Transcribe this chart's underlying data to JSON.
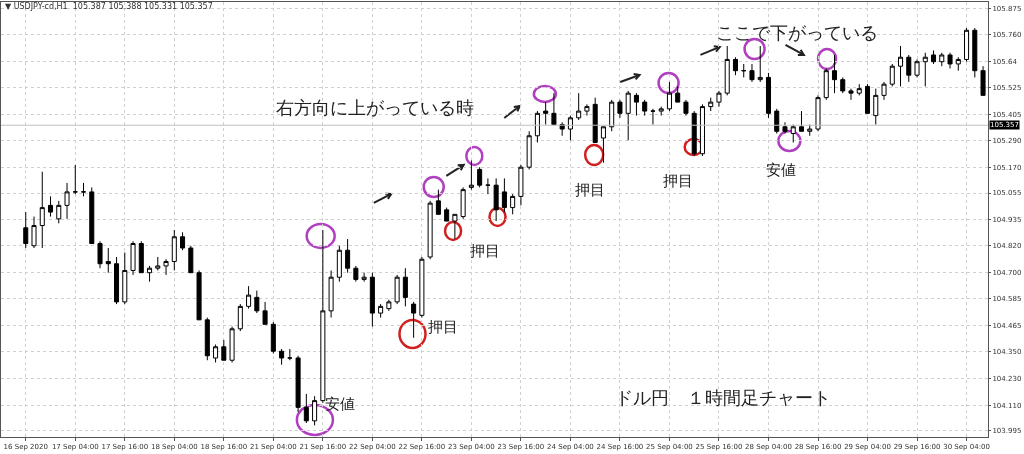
{
  "chart_data": {
    "type": "candlestick",
    "title": "▼ USDJPY-cd,H1  105.387 105.388 105.331 105.357",
    "color": "#000000",
    "annotations": [
      "右方向に上がっている時",
      "ここで下がっている",
      "ドル円　１時間足チャート",
      "安値",
      "押目",
      "押目",
      "押目",
      "押目",
      "安値"
    ],
    "categories": [
      "16 Sep 2020",
      null,
      null,
      null,
      null,
      null,
      "17 Sep 04:00",
      null,
      null,
      null,
      null,
      null,
      "17 Sep 16:00",
      null,
      null,
      null,
      null,
      null,
      "18 Sep 04:00",
      null,
      null,
      null,
      null,
      null,
      "18 Sep 16:00",
      null,
      null,
      null,
      null,
      null,
      "21 Sep 04:00",
      null,
      null,
      null,
      null,
      null,
      "21 Sep 16:00",
      null,
      null,
      null,
      null,
      null,
      "22 Sep 04:00",
      null,
      null,
      null,
      null,
      null,
      "22 Sep 16:00",
      null,
      null,
      null,
      null,
      null,
      "23 Sep 04:00",
      null,
      null,
      null,
      null,
      null,
      "23 Sep 16:00",
      null,
      null,
      null,
      null,
      null,
      "24 Sep 04:00",
      null,
      null,
      null,
      null,
      null,
      "24 Sep 16:00",
      null,
      null,
      null,
      null,
      null,
      "25 Sep 04:00",
      null,
      null,
      null,
      null,
      null,
      "25 Sep 16:00",
      null,
      null,
      null,
      null,
      null,
      "28 Sep 04:00",
      null,
      null,
      null,
      null,
      null,
      "28 Sep 16:00",
      null,
      null,
      null,
      null,
      null,
      "29 Sep 04:00",
      null,
      null,
      null,
      null,
      null,
      "29 Sep 16:00",
      null,
      null,
      null,
      null,
      null,
      "30 Sep 04:00",
      null,
      null
    ],
    "ohlc": [
      [
        104.9,
        104.97,
        104.81,
        104.83
      ],
      [
        104.82,
        104.95,
        104.81,
        104.91
      ],
      [
        104.91,
        105.15,
        104.81,
        104.99
      ],
      [
        105.0,
        105.04,
        104.95,
        104.97
      ],
      [
        104.94,
        105.02,
        104.92,
        105.0
      ],
      [
        105.0,
        105.1,
        104.94,
        105.06
      ],
      [
        105.06,
        105.18,
        105.05,
        105.06
      ],
      [
        105.06,
        105.1,
        105.04,
        105.06
      ],
      [
        105.06,
        105.08,
        104.83,
        104.83
      ],
      [
        104.83,
        104.84,
        104.72,
        104.74
      ],
      [
        104.75,
        104.81,
        104.7,
        104.74
      ],
      [
        104.74,
        104.77,
        104.56,
        104.57
      ],
      [
        104.57,
        104.79,
        104.56,
        104.71
      ],
      [
        104.71,
        104.84,
        104.69,
        104.83
      ],
      [
        104.83,
        104.84,
        104.7,
        104.7
      ],
      [
        104.7,
        104.73,
        104.66,
        104.72
      ],
      [
        104.72,
        104.77,
        104.71,
        104.73
      ],
      [
        104.73,
        104.76,
        104.69,
        104.75
      ],
      [
        104.75,
        104.89,
        104.71,
        104.86
      ],
      [
        104.86,
        104.88,
        104.8,
        104.81
      ],
      [
        104.81,
        104.82,
        104.7,
        104.7
      ],
      [
        104.7,
        104.71,
        104.49,
        104.49
      ],
      [
        104.49,
        104.5,
        104.31,
        104.33
      ],
      [
        104.32,
        104.38,
        104.3,
        104.37
      ],
      [
        104.37,
        104.4,
        104.31,
        104.31
      ],
      [
        104.31,
        104.46,
        104.3,
        104.45
      ],
      [
        104.45,
        104.56,
        104.44,
        104.55
      ],
      [
        104.55,
        104.64,
        104.54,
        104.6
      ],
      [
        104.59,
        104.62,
        104.52,
        104.53
      ],
      [
        104.53,
        104.57,
        104.47,
        104.47
      ],
      [
        104.47,
        104.48,
        104.34,
        104.35
      ],
      [
        104.35,
        104.36,
        104.29,
        104.32
      ],
      [
        104.32,
        104.36,
        104.31,
        104.32
      ],
      [
        104.32,
        104.33,
        104.08,
        104.1
      ],
      [
        104.1,
        104.16,
        104.03,
        104.04
      ],
      [
        104.04,
        104.15,
        104.02,
        104.13
      ],
      [
        104.13,
        104.89,
        104.12,
        104.53
      ],
      [
        104.53,
        104.71,
        104.5,
        104.68
      ],
      [
        104.68,
        104.82,
        104.66,
        104.8
      ],
      [
        104.8,
        104.85,
        104.7,
        104.72
      ],
      [
        104.72,
        104.73,
        104.66,
        104.67
      ],
      [
        104.67,
        104.7,
        104.66,
        104.68
      ],
      [
        104.68,
        104.7,
        104.46,
        104.52
      ],
      [
        104.52,
        104.56,
        104.5,
        104.55
      ],
      [
        104.54,
        104.58,
        104.53,
        104.57
      ],
      [
        104.57,
        104.69,
        104.56,
        104.68
      ],
      [
        104.68,
        104.72,
        104.55,
        104.59
      ],
      [
        104.56,
        104.57,
        104.41,
        104.52
      ],
      [
        104.51,
        104.77,
        104.5,
        104.76
      ],
      [
        104.77,
        105.02,
        104.76,
        105.01
      ],
      [
        105.02,
        105.07,
        104.96,
        104.96
      ],
      [
        104.98,
        104.99,
        104.93,
        104.93
      ],
      [
        104.93,
        104.96,
        104.85,
        104.96
      ],
      [
        104.95,
        105.08,
        104.94,
        105.07
      ],
      [
        105.08,
        105.2,
        105.07,
        105.09
      ],
      [
        105.16,
        105.17,
        105.08,
        105.09
      ],
      [
        105.09,
        105.12,
        105.05,
        105.09
      ],
      [
        105.09,
        105.12,
        104.93,
        104.98
      ],
      [
        105.06,
        105.12,
        104.97,
        104.99
      ],
      [
        104.99,
        105.05,
        104.96,
        105.04
      ],
      [
        105.04,
        105.18,
        105.0,
        105.17
      ],
      [
        105.17,
        105.33,
        105.16,
        105.31
      ],
      [
        105.31,
        105.42,
        105.28,
        105.41
      ],
      [
        105.42,
        105.46,
        105.36,
        105.41
      ],
      [
        105.41,
        105.5,
        105.36,
        105.36
      ],
      [
        105.36,
        105.37,
        105.31,
        105.34
      ],
      [
        105.34,
        105.4,
        105.29,
        105.39
      ],
      [
        105.39,
        105.5,
        105.38,
        105.42
      ],
      [
        105.42,
        105.45,
        105.4,
        105.44
      ],
      [
        105.45,
        105.48,
        105.28,
        105.28
      ],
      [
        105.3,
        105.35,
        105.19,
        105.35
      ],
      [
        105.35,
        105.47,
        105.33,
        105.46
      ],
      [
        105.46,
        105.47,
        105.39,
        105.41
      ],
      [
        105.41,
        105.51,
        105.29,
        105.5
      ],
      [
        105.49,
        105.5,
        105.4,
        105.46
      ],
      [
        105.46,
        105.47,
        105.4,
        105.42
      ],
      [
        105.42,
        105.43,
        105.36,
        105.42
      ],
      [
        105.42,
        105.44,
        105.4,
        105.43
      ],
      [
        105.43,
        105.55,
        105.42,
        105.5
      ],
      [
        105.5,
        105.53,
        105.46,
        105.46
      ],
      [
        105.46,
        105.47,
        105.4,
        105.41
      ],
      [
        105.41,
        105.42,
        105.22,
        105.23
      ],
      [
        105.23,
        105.45,
        105.22,
        105.44
      ],
      [
        105.44,
        105.48,
        105.42,
        105.46
      ],
      [
        105.46,
        105.51,
        105.44,
        105.5
      ],
      [
        105.5,
        105.71,
        105.49,
        105.65
      ],
      [
        105.65,
        105.66,
        105.58,
        105.6
      ],
      [
        105.6,
        105.63,
        105.57,
        105.6
      ],
      [
        105.6,
        105.63,
        105.55,
        105.56
      ],
      [
        105.56,
        105.71,
        105.55,
        105.57
      ],
      [
        105.57,
        105.59,
        105.39,
        105.41
      ],
      [
        105.42,
        105.43,
        105.32,
        105.33
      ],
      [
        105.35,
        105.37,
        105.32,
        105.33
      ],
      [
        105.32,
        105.36,
        105.28,
        105.35
      ],
      [
        105.35,
        105.42,
        105.33,
        105.33
      ],
      [
        105.33,
        105.36,
        105.31,
        105.34
      ],
      [
        105.34,
        105.49,
        105.33,
        105.48
      ],
      [
        105.48,
        105.61,
        105.47,
        105.6
      ],
      [
        105.6,
        105.67,
        105.5,
        105.56
      ],
      [
        105.56,
        105.57,
        105.5,
        105.51
      ],
      [
        105.51,
        105.52,
        105.47,
        105.5
      ],
      [
        105.5,
        105.54,
        105.49,
        105.52
      ],
      [
        105.53,
        105.54,
        105.41,
        105.41
      ],
      [
        105.4,
        105.52,
        105.36,
        105.49
      ],
      [
        105.49,
        105.55,
        105.47,
        105.54
      ],
      [
        105.54,
        105.63,
        105.53,
        105.62
      ],
      [
        105.62,
        105.71,
        105.53,
        105.66
      ],
      [
        105.66,
        105.67,
        105.55,
        105.58
      ],
      [
        105.58,
        105.65,
        105.57,
        105.64
      ],
      [
        105.64,
        105.68,
        105.53,
        105.66
      ],
      [
        105.67,
        105.69,
        105.63,
        105.64
      ],
      [
        105.64,
        105.68,
        105.62,
        105.67
      ],
      [
        105.67,
        105.68,
        105.61,
        105.63
      ],
      [
        105.63,
        105.66,
        105.6,
        105.65
      ],
      [
        105.65,
        105.79,
        105.64,
        105.78
      ],
      [
        105.78,
        105.79,
        105.57,
        105.6
      ],
      [
        105.6,
        105.62,
        105.49,
        105.49
      ]
    ],
    "ylim": [
      103.968,
      105.906
    ],
    "yticks": [
      103.995,
      {
        "value": 104.11,
        "label": "104.110"
      },
      {
        "value": 104.23,
        "label": "104.230"
      },
      {
        "value": 104.35,
        "label": "104.350"
      },
      104.465,
      104.585,
      {
        "value": 104.7,
        "label": "104.700"
      },
      {
        "value": 104.82,
        "label": "104.820"
      },
      104.935,
      105.055,
      {
        "value": 105.17,
        "label": "105.170"
      },
      {
        "value": 105.29,
        "label": "105.290"
      },
      105.405,
      105.525,
      105.64,
      {
        "value": 105.76,
        "label": "105.760"
      },
      105.875
    ],
    "grid": true,
    "ref_lines": [
      {
        "axis": "y",
        "value": 105.357,
        "label": "105.357",
        "color": "#c0c0c0"
      }
    ]
  }
}
